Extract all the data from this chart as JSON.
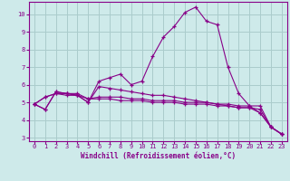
{
  "xlabel": "Windchill (Refroidissement éolien,°C)",
  "bg_color": "#ceeaea",
  "line_color": "#880088",
  "grid_color": "#aacccc",
  "spine_color": "#880088",
  "xlim": [
    -0.5,
    23.5
  ],
  "ylim": [
    2.8,
    10.7
  ],
  "yticks": [
    3,
    4,
    5,
    6,
    7,
    8,
    9,
    10
  ],
  "xticks": [
    0,
    1,
    2,
    3,
    4,
    5,
    6,
    7,
    8,
    9,
    10,
    11,
    12,
    13,
    14,
    15,
    16,
    17,
    18,
    19,
    20,
    21,
    22,
    23
  ],
  "series": [
    [
      4.9,
      4.6,
      5.6,
      5.5,
      5.4,
      5.0,
      6.2,
      6.4,
      6.6,
      6.0,
      6.2,
      7.6,
      8.7,
      9.3,
      10.1,
      10.4,
      9.6,
      9.4,
      7.0,
      5.5,
      4.8,
      4.4,
      3.6,
      3.2
    ],
    [
      4.9,
      4.6,
      5.6,
      5.5,
      5.4,
      5.0,
      5.9,
      5.8,
      5.7,
      5.6,
      5.5,
      5.4,
      5.4,
      5.3,
      5.2,
      5.1,
      5.0,
      4.9,
      4.8,
      4.7,
      4.7,
      4.6,
      3.6,
      3.2
    ],
    [
      4.9,
      5.3,
      5.5,
      5.5,
      5.5,
      5.2,
      5.3,
      5.3,
      5.3,
      5.2,
      5.2,
      5.1,
      5.1,
      5.1,
      5.0,
      5.0,
      5.0,
      4.9,
      4.9,
      4.8,
      4.8,
      4.8,
      3.6,
      3.2
    ],
    [
      4.9,
      5.3,
      5.5,
      5.4,
      5.4,
      5.2,
      5.2,
      5.2,
      5.1,
      5.1,
      5.1,
      5.0,
      5.0,
      5.0,
      4.9,
      4.9,
      4.9,
      4.8,
      4.8,
      4.7,
      4.7,
      4.4,
      3.6,
      3.2
    ]
  ],
  "tick_fontsize": 5.0,
  "xlabel_fontsize": 5.5
}
